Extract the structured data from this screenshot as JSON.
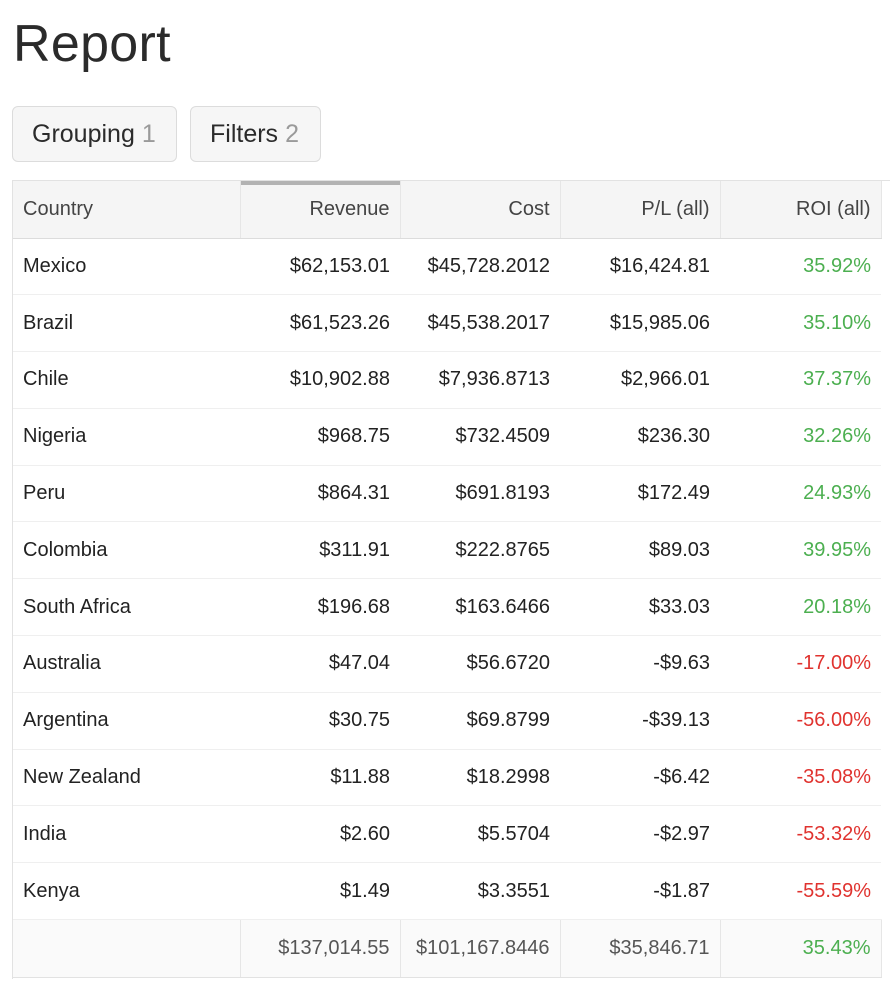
{
  "page": {
    "title": "Report"
  },
  "toolbar": {
    "grouping": {
      "label": "Grouping",
      "count": "1"
    },
    "filters": {
      "label": "Filters",
      "count": "2"
    }
  },
  "table": {
    "columns": [
      "Country",
      "Revenue",
      "Cost",
      "P/L (all)",
      "ROI (all)"
    ],
    "sorted_column": "Revenue",
    "rows": [
      {
        "country": "Mexico",
        "revenue": "$62,153.01",
        "cost": "$45,728.2012",
        "pl": "$16,424.81",
        "roi": "35.92%",
        "roi_sign": "pos"
      },
      {
        "country": "Brazil",
        "revenue": "$61,523.26",
        "cost": "$45,538.2017",
        "pl": "$15,985.06",
        "roi": "35.10%",
        "roi_sign": "pos"
      },
      {
        "country": "Chile",
        "revenue": "$10,902.88",
        "cost": "$7,936.8713",
        "pl": "$2,966.01",
        "roi": "37.37%",
        "roi_sign": "pos"
      },
      {
        "country": "Nigeria",
        "revenue": "$968.75",
        "cost": "$732.4509",
        "pl": "$236.30",
        "roi": "32.26%",
        "roi_sign": "pos"
      },
      {
        "country": "Peru",
        "revenue": "$864.31",
        "cost": "$691.8193",
        "pl": "$172.49",
        "roi": "24.93%",
        "roi_sign": "pos"
      },
      {
        "country": "Colombia",
        "revenue": "$311.91",
        "cost": "$222.8765",
        "pl": "$89.03",
        "roi": "39.95%",
        "roi_sign": "pos"
      },
      {
        "country": "South Africa",
        "revenue": "$196.68",
        "cost": "$163.6466",
        "pl": "$33.03",
        "roi": "20.18%",
        "roi_sign": "pos"
      },
      {
        "country": "Australia",
        "revenue": "$47.04",
        "cost": "$56.6720",
        "pl": "-$9.63",
        "roi": "-17.00%",
        "roi_sign": "neg"
      },
      {
        "country": "Argentina",
        "revenue": "$30.75",
        "cost": "$69.8799",
        "pl": "-$39.13",
        "roi": "-56.00%",
        "roi_sign": "neg"
      },
      {
        "country": "New Zealand",
        "revenue": "$11.88",
        "cost": "$18.2998",
        "pl": "-$6.42",
        "roi": "-35.08%",
        "roi_sign": "neg"
      },
      {
        "country": "India",
        "revenue": "$2.60",
        "cost": "$5.5704",
        "pl": "-$2.97",
        "roi": "-53.32%",
        "roi_sign": "neg"
      },
      {
        "country": "Kenya",
        "revenue": "$1.49",
        "cost": "$3.3551",
        "pl": "-$1.87",
        "roi": "-55.59%",
        "roi_sign": "neg"
      }
    ],
    "totals": {
      "country": "",
      "revenue": "$137,014.55",
      "cost": "$101,167.8446",
      "pl": "$35,846.71",
      "roi": "35.43%",
      "roi_sign": "pos"
    }
  },
  "colors": {
    "positive": "#4caf50",
    "negative": "#e0332f",
    "sort_indicator": "#b3b3b3"
  }
}
